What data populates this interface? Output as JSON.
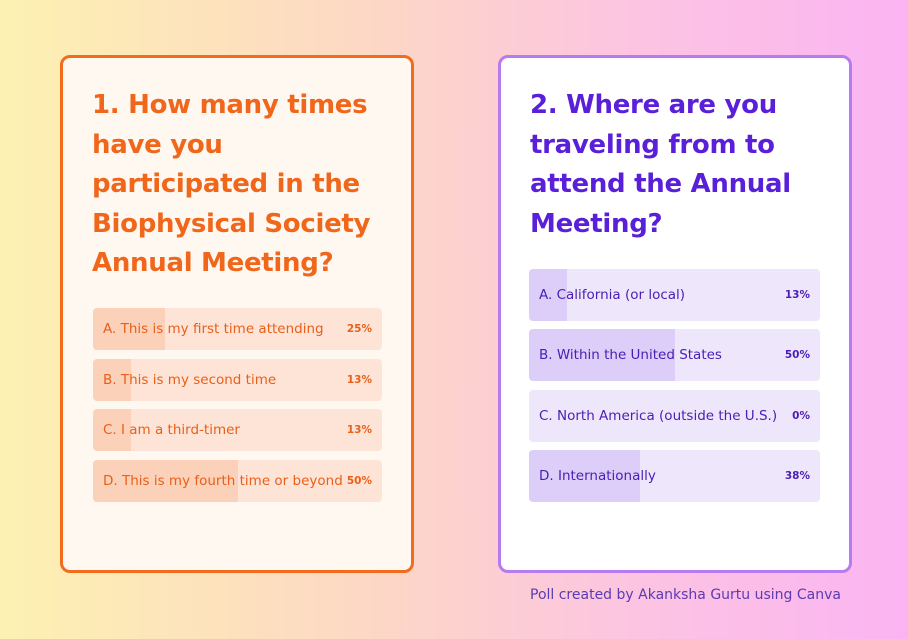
{
  "polls": [
    {
      "question": "1. How many times have you participated in the Biophysical Society Annual Meeting?",
      "options": [
        "A. This is my first time attending",
        "B. This is my second time",
        "C. I am a third-timer",
        "D. This is my fourth time or beyond"
      ],
      "values": [
        25,
        13,
        13,
        50
      ],
      "value_labels": [
        "25%",
        "13%",
        "13%",
        "50%"
      ]
    },
    {
      "question": "2. Where are you traveling from to attend the Annual Meeting?",
      "options": [
        "A. California (or local)",
        "B. Within the United States",
        "C. North America (outside the U.S.)",
        "D. Internationally"
      ],
      "values": [
        13,
        50,
        0,
        38
      ],
      "value_labels": [
        "13%",
        "50%",
        "0%",
        "38%"
      ]
    }
  ],
  "credit": "Poll created by Akanksha Gurtu using Canva"
}
